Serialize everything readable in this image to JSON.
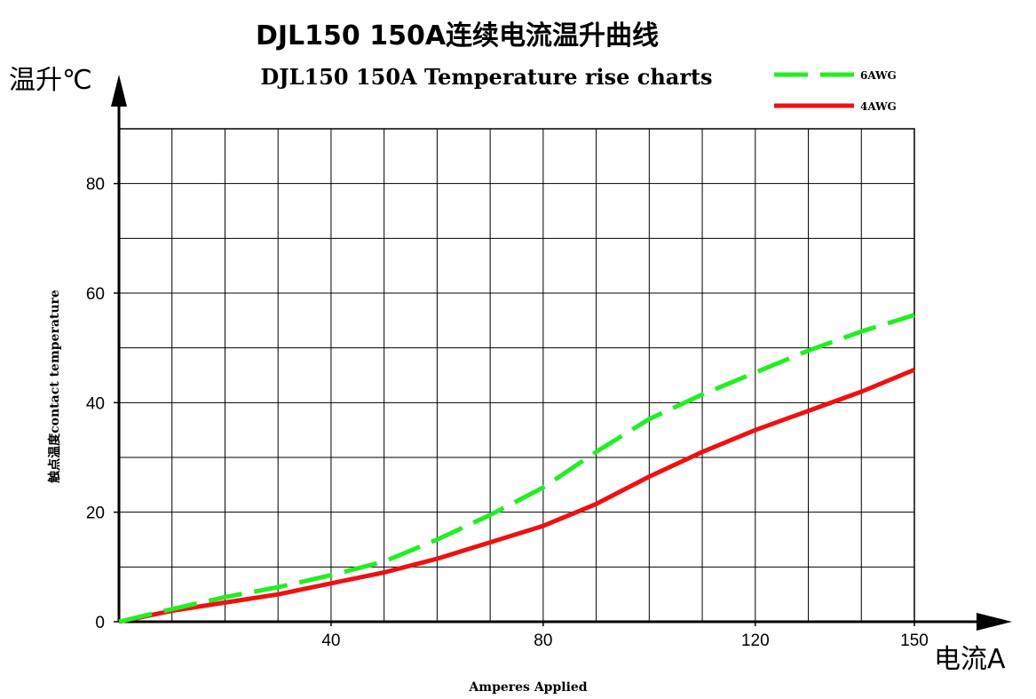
{
  "chart_data": {
    "type": "line",
    "title": "DJL150 150A连续电流温升曲线",
    "subtitle": "DJL150 150A Temperature rise charts",
    "y_unit": "温升℃",
    "x_unit": "电流A",
    "ylabel": "触点温度contact temperature",
    "xlabel": "Amperes Applied",
    "xlim": [
      0,
      150
    ],
    "ylim": [
      0,
      90
    ],
    "x_ticks": [
      40,
      80,
      120,
      150
    ],
    "y_ticks": [
      0,
      20,
      40,
      60,
      80
    ],
    "x_grid_step": 10,
    "y_grid_step": 10,
    "grid": true,
    "legend_position": "top-right",
    "series": [
      {
        "name": "6AWG",
        "color": "#22ee22",
        "style": "dashed",
        "x": [
          0,
          10,
          20,
          30,
          40,
          50,
          60,
          70,
          80,
          90,
          100,
          110,
          120,
          130,
          140,
          150
        ],
        "y": [
          0,
          2.3,
          4.5,
          6.3,
          8.5,
          11,
          15,
          19.5,
          24.5,
          31,
          37,
          41.5,
          45.5,
          49.5,
          53,
          56
        ]
      },
      {
        "name": "4AWG",
        "color": "#ee1111",
        "style": "solid",
        "x": [
          0,
          10,
          20,
          30,
          40,
          50,
          60,
          70,
          80,
          90,
          100,
          110,
          120,
          130,
          140,
          150
        ],
        "y": [
          0,
          2,
          3.5,
          5,
          7,
          9,
          11.5,
          14.5,
          17.5,
          21.5,
          26.5,
          31,
          35,
          38.5,
          42,
          46
        ]
      }
    ]
  }
}
